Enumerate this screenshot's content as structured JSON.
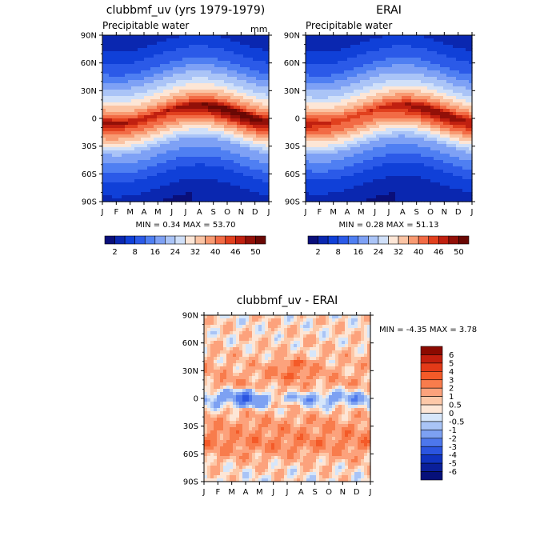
{
  "panels": {
    "left": {
      "title": "clubbmf_uv (yrs 1979-1979)",
      "subtitle": "Precipitable water",
      "units": "mm",
      "stats": "MIN =    0.34 MAX =   53.70"
    },
    "right": {
      "title": "ERAI",
      "subtitle": "Precipitable water",
      "stats": "MIN =    0.28 MAX =   51.13"
    },
    "diff": {
      "title": "clubbmf_uv - ERAI",
      "stats": "MIN =  -4.35 MAX =    3.78"
    }
  },
  "axes": {
    "lat_ticks": [
      "90N",
      "60N",
      "30N",
      "0",
      "30S",
      "60S",
      "90S"
    ],
    "month_ticks": [
      "J",
      "F",
      "M",
      "A",
      "M",
      "J",
      "J",
      "A",
      "S",
      "O",
      "N",
      "D",
      "J"
    ]
  },
  "colorbar_top": {
    "labels": [
      "2",
      "8",
      "16",
      "24",
      "32",
      "40",
      "46",
      "50"
    ],
    "colors": [
      "#0a0f7a",
      "#0a27b0",
      "#1040d8",
      "#2b5ae8",
      "#4f7ff2",
      "#7ea1f5",
      "#aac4f7",
      "#d0e0f9",
      "#fde6d6",
      "#fbc4a4",
      "#f89a72",
      "#f26b45",
      "#e1401e",
      "#c02010",
      "#921008",
      "#6a0804"
    ]
  },
  "colorbar_diff": {
    "labels": [
      "6",
      "5",
      "4",
      "3",
      "2",
      "1",
      "0.5",
      "0",
      "-0.5",
      "-1",
      "-2",
      "-3",
      "-4",
      "-5",
      "-6"
    ],
    "colors": [
      "#8b0a00",
      "#c21f0e",
      "#e33a18",
      "#f45a28",
      "#f87c4c",
      "#fca27c",
      "#fdc8a8",
      "#fde6d6",
      "#d6e6fa",
      "#a9c4f6",
      "#7da1f2",
      "#4d77ec",
      "#2b55e0",
      "#1033c0",
      "#0a1f9a",
      "#06107a"
    ]
  },
  "chart_data": [
    {
      "type": "heatmap",
      "title": "clubbmf_uv (yrs 1979-1979)",
      "subtitle": "Precipitable water",
      "units": "mm",
      "x": [
        "J",
        "F",
        "M",
        "A",
        "M",
        "J",
        "J",
        "A",
        "S",
        "O",
        "N",
        "D",
        "J"
      ],
      "y": [
        "90N",
        "60N",
        "30N",
        "0",
        "30S",
        "60S",
        "90S"
      ],
      "lat_profile": {
        "lat": [
          90,
          60,
          30,
          15,
          5,
          -5,
          -15,
          -30,
          -60,
          -90
        ],
        "value": [
          3,
          10,
          26,
          38,
          50,
          44,
          34,
          20,
          8,
          2
        ]
      },
      "seasonal_shift_deg": 10,
      "min": 0.34,
      "max": 53.7,
      "levels": [
        2,
        5,
        8,
        12,
        16,
        20,
        24,
        28,
        32,
        36,
        40,
        44,
        46,
        48,
        50
      ]
    },
    {
      "type": "heatmap",
      "title": "ERAI",
      "subtitle": "Precipitable water",
      "x": [
        "J",
        "F",
        "M",
        "A",
        "M",
        "J",
        "J",
        "A",
        "S",
        "O",
        "N",
        "D",
        "J"
      ],
      "y": [
        "90N",
        "60N",
        "30N",
        "0",
        "30S",
        "60S",
        "90S"
      ],
      "lat_profile": {
        "lat": [
          90,
          60,
          30,
          15,
          5,
          -5,
          -15,
          -30,
          -60,
          -90
        ],
        "value": [
          3,
          10,
          25,
          37,
          48,
          43,
          33,
          19,
          7,
          2
        ]
      },
      "seasonal_shift_deg": 10,
      "min": 0.28,
      "max": 51.13,
      "levels": [
        2,
        5,
        8,
        12,
        16,
        20,
        24,
        28,
        32,
        36,
        40,
        44,
        46,
        48,
        50
      ]
    },
    {
      "type": "heatmap",
      "title": "clubbmf_uv - ERAI",
      "x": [
        "J",
        "F",
        "M",
        "A",
        "M",
        "J",
        "J",
        "A",
        "S",
        "O",
        "N",
        "D",
        "J"
      ],
      "y": [
        "90N",
        "60N",
        "30N",
        "0",
        "30S",
        "60S",
        "90S"
      ],
      "lat_profile": {
        "lat": [
          90,
          60,
          30,
          15,
          0,
          -15,
          -30,
          -50,
          -70,
          -90
        ],
        "value": [
          0.4,
          0.6,
          1.2,
          1.5,
          -1.5,
          1.0,
          1.8,
          2.2,
          0.8,
          0.2
        ]
      },
      "min": -4.35,
      "max": 3.78,
      "levels": [
        -6,
        -5,
        -4,
        -3,
        -2,
        -1,
        -0.5,
        0,
        0.5,
        1,
        2,
        3,
        4,
        5,
        6
      ]
    }
  ]
}
